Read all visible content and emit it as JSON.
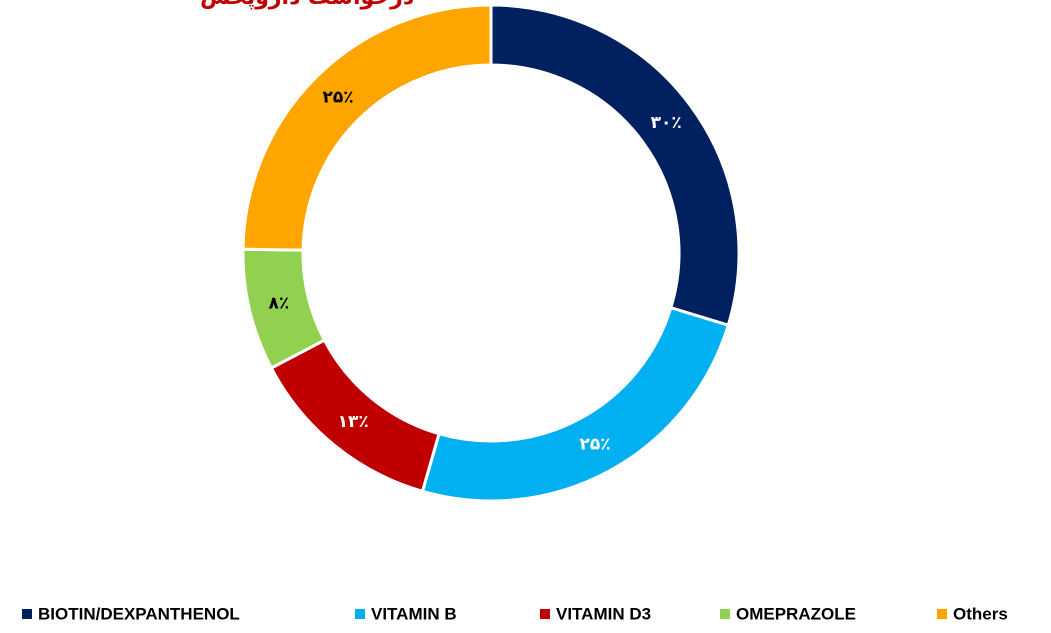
{
  "chart_data": {
    "type": "donut",
    "title": "درخواست داروپخش",
    "categories": [
      "BIOTIN/DEXPANTHENOL",
      "VITAMIN B",
      "VITAMIN D3",
      "OMEPRAZOLE",
      "Others"
    ],
    "values": [
      30,
      25,
      13,
      8,
      25
    ],
    "value_labels": [
      "۳۰٪",
      "۲۵٪",
      "۱۳٪",
      "۸٪",
      "۲۵٪"
    ],
    "colors": [
      "#002060",
      "#00b0f0",
      "#c00000",
      "#92d050",
      "#ffa500"
    ],
    "legend": "bottom"
  }
}
